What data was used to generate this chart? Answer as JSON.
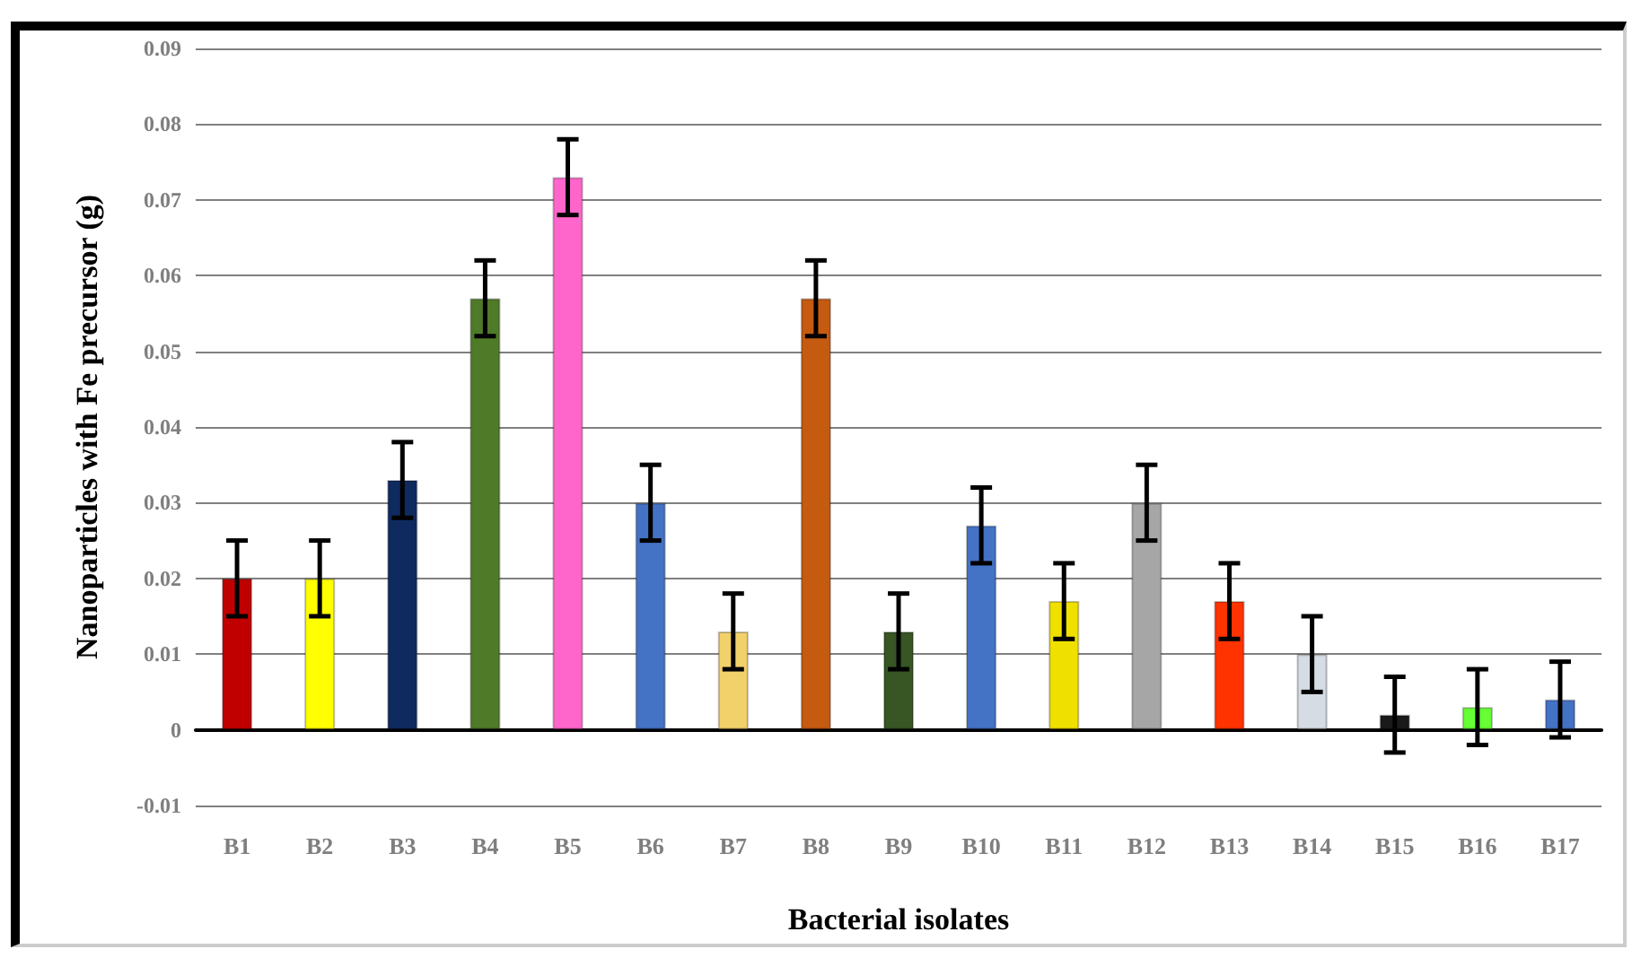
{
  "chart_data": {
    "type": "bar",
    "xlabel": "Bacterial isolates",
    "ylabel": "Nanoparticles with Fe precursor (g)",
    "categories": [
      "B1",
      "B2",
      "B3",
      "B4",
      "B5",
      "B6",
      "B7",
      "B8",
      "B9",
      "B10",
      "B11",
      "B12",
      "B13",
      "B14",
      "B15",
      "B16",
      "B17"
    ],
    "values": [
      0.02,
      0.02,
      0.033,
      0.057,
      0.073,
      0.03,
      0.013,
      0.057,
      0.013,
      0.027,
      0.017,
      0.03,
      0.017,
      0.01,
      0.002,
      0.003,
      0.004
    ],
    "errors": [
      0.005,
      0.005,
      0.005,
      0.005,
      0.005,
      0.005,
      0.005,
      0.005,
      0.005,
      0.005,
      0.005,
      0.005,
      0.005,
      0.005,
      0.005,
      0.005,
      0.005
    ],
    "colors": [
      "#c00000",
      "#ffff00",
      "#0f2a5f",
      "#4f7a28",
      "#ff66cc",
      "#4472c4",
      "#f2d16b",
      "#c55a11",
      "#375623",
      "#4472c4",
      "#f0e000",
      "#a6a6a6",
      "#ff3300",
      "#d6dce4",
      "#1a1a1a",
      "#66ff33",
      "#4472c4"
    ],
    "ylim": [
      -0.01,
      0.09
    ],
    "yticks": [
      -0.01,
      0,
      0.01,
      0.02,
      0.03,
      0.04,
      0.05,
      0.06,
      0.07,
      0.08,
      0.09
    ],
    "grid": "y"
  }
}
